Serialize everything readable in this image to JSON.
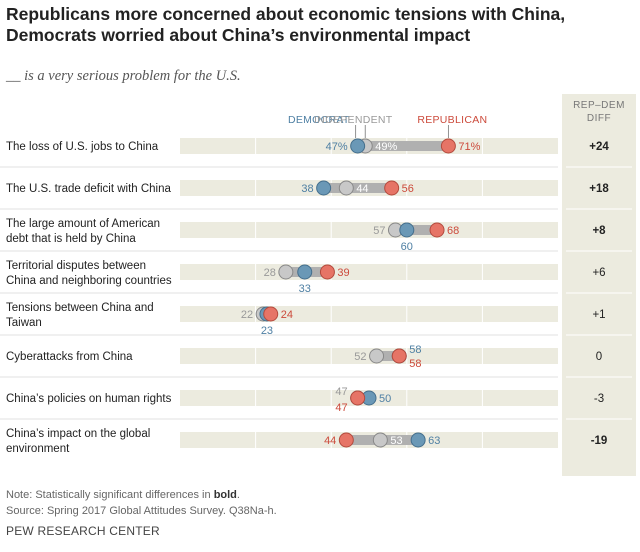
{
  "header": {
    "title": "Republicans more concerned about economic tensions with China, Democrats worried about China’s environmental impact",
    "subtitle": "__ is a very serious problem for the U.S."
  },
  "footer": {
    "note_prefix": "Note: Statistically significant differences in ",
    "note_bold": "bold",
    "note_suffix": ".",
    "source": "Source: Spring 2017 Global Attitudes Survey. Q38Na-h.",
    "org": "PEW RESEARCH CENTER"
  },
  "colors": {
    "democrat": "#6a98b6",
    "independent": "#c8c8c8",
    "republican": "#e67466",
    "democrat_text": "#4e7fa3",
    "republican_text": "#cc4a3b",
    "independent_text": "#999999",
    "track": "#ecebdf",
    "range": "#b0b0b0",
    "diff_panel": "#ecebdf"
  },
  "chart_data": {
    "type": "dot",
    "x_range": [
      0,
      100
    ],
    "series_names": [
      "DEMOCRAT",
      "INDEPENDENT",
      "REPUBLICAN"
    ],
    "diff_header": [
      "REP–DEM",
      "DIFF"
    ],
    "categories": [
      {
        "label": [
          "The loss of U.S. jobs to China"
        ],
        "dem": 47,
        "ind": 49,
        "rep": 71,
        "diff": "+24",
        "sig": true,
        "pct": true
      },
      {
        "label": [
          "The U.S. trade deficit with China"
        ],
        "dem": 38,
        "ind": 44,
        "rep": 56,
        "diff": "+18",
        "sig": true
      },
      {
        "label": [
          "The large amount of American",
          "debt that is held by China"
        ],
        "dem": 60,
        "ind": 57,
        "rep": 68,
        "diff": "+8",
        "sig": true
      },
      {
        "label": [
          "Territorial disputes between",
          "China and neighboring countries"
        ],
        "dem": 33,
        "ind": 28,
        "rep": 39,
        "diff": "+6",
        "sig": false
      },
      {
        "label": [
          "Tensions between China and",
          "Taiwan"
        ],
        "dem": 23,
        "ind": 22,
        "rep": 24,
        "diff": "+1",
        "sig": false
      },
      {
        "label": [
          "Cyberattacks from China"
        ],
        "dem": 58,
        "ind": 52,
        "rep": 58,
        "diff": "0",
        "sig": false
      },
      {
        "label": [
          "China’s policies on human rights"
        ],
        "dem": 50,
        "ind": 47,
        "rep": 47,
        "diff": "-3",
        "sig": false
      },
      {
        "label": [
          "China’s impact on the global",
          "environment"
        ],
        "dem": 63,
        "ind": 53,
        "rep": 44,
        "diff": "-19",
        "sig": true
      }
    ]
  }
}
